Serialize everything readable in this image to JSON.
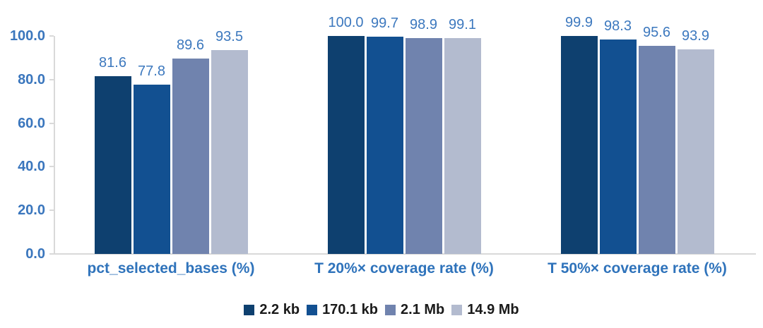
{
  "chart_data": {
    "type": "bar",
    "title": "",
    "xlabel": "",
    "ylabel": "",
    "categories": [
      "pct_selected_bases (%)",
      "T 20%× coverage rate (%)",
      "T 50%× coverage rate (%)"
    ],
    "series": [
      {
        "name": "2.2 kb",
        "color": "#0e406f",
        "values": [
          81.6,
          100.0,
          99.9
        ]
      },
      {
        "name": "170.1 kb",
        "color": "#125091",
        "values": [
          77.8,
          99.7,
          98.3
        ]
      },
      {
        "name": "2.1 Mb",
        "color": "#7083ae",
        "values": [
          89.6,
          98.9,
          95.6
        ]
      },
      {
        "name": "14.9 Mb",
        "color": "#b3bbcf",
        "values": [
          93.5,
          99.1,
          93.9
        ]
      }
    ],
    "ylim": [
      0,
      100
    ],
    "yticks": [
      0,
      20,
      40,
      60,
      80,
      100
    ],
    "ytick_labels": [
      "0.0",
      "20.0",
      "40.0",
      "60.0",
      "80.0",
      "100.0"
    ],
    "value_labels": [
      "81.6",
      "77.8",
      "89.6",
      "93.5",
      "100.0",
      "99.7",
      "98.9",
      "99.1",
      "99.9",
      "98.3",
      "95.6",
      "93.9"
    ],
    "grid": false,
    "legend_position": "bottom"
  },
  "colors": {
    "axis_tick_text": "#3a76bd",
    "value_label_text": "#3c78be",
    "category_text": "#2f73bb",
    "legend_text": "#1a1a1a",
    "axis_line": "#d9d9d9",
    "background": "#ffffff"
  }
}
